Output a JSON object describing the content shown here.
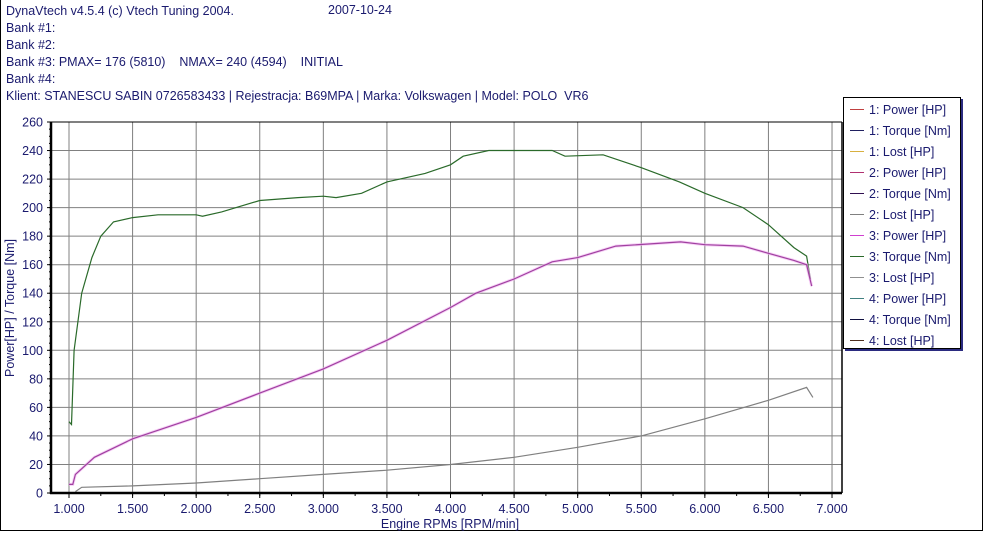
{
  "header": {
    "app_title": "DynaVtech v4.5.4 (c) Vtech Tuning 2004.",
    "date": "2007-10-24",
    "bank1": "Bank #1:",
    "bank2": "Bank #2:",
    "bank3": "Bank #3: PMAX= 176 (5810)    NMAX= 240 (4594)    INITIAL",
    "bank4": "Bank #4:",
    "client": "Klient: STANESCU SABIN 0726583433 | Rejestracja: B69MPA | Marka: Volkswagen | Model: POLO  VR6"
  },
  "legend": {
    "items": [
      {
        "label": "1: Power [HP]",
        "color": "#c04040"
      },
      {
        "label": "1: Torque [Nm]",
        "color": "#202060"
      },
      {
        "label": "1: Lost [HP]",
        "color": "#d8b040"
      },
      {
        "label": "2: Power [HP]",
        "color": "#b03070"
      },
      {
        "label": "2: Torque [Nm]",
        "color": "#301050"
      },
      {
        "label": "2: Lost [HP]",
        "color": "#808080"
      },
      {
        "label": "3: Power [HP]",
        "color": "#d040d0"
      },
      {
        "label": "3: Torque [Nm]",
        "color": "#2a6a2a"
      },
      {
        "label": "3: Lost [HP]",
        "color": "#909090"
      },
      {
        "label": "4: Power [HP]",
        "color": "#408080"
      },
      {
        "label": "4: Torque [Nm]",
        "color": "#101040"
      },
      {
        "label": "4: Lost [HP]",
        "color": "#503020"
      }
    ]
  },
  "chart_data": {
    "type": "line",
    "title": "",
    "xlabel": "Engine RPMs [RPM/min]",
    "ylabel": "Power[HP] / Torque [Nm]",
    "xlim": [
      860,
      7060
    ],
    "ylim": [
      0,
      260
    ],
    "grid": true,
    "legend_position": "right",
    "x_ticks": [
      1000,
      1500,
      2000,
      2500,
      3000,
      3500,
      4000,
      4500,
      5000,
      5500,
      6000,
      6500,
      7000
    ],
    "x_tick_labels": [
      "1.000",
      "1.500",
      "2.000",
      "2.500",
      "3.000",
      "3.500",
      "4.000",
      "4.500",
      "5.000",
      "5.500",
      "6.000",
      "6.500",
      "7.000"
    ],
    "y_ticks": [
      0,
      20,
      40,
      60,
      80,
      100,
      120,
      140,
      160,
      180,
      200,
      220,
      240,
      260
    ],
    "series": [
      {
        "name": "3: Torque [Nm]",
        "color": "#2a6a2a",
        "x": [
          1000,
          1020,
          1040,
          1100,
          1180,
          1250,
          1350,
          1500,
          1700,
          2000,
          2050,
          2200,
          2500,
          2800,
          3000,
          3100,
          3300,
          3500,
          3800,
          4000,
          4100,
          4300,
          4600,
          4800,
          4900,
          5200,
          5500,
          5800,
          6000,
          6300,
          6500,
          6700,
          6800,
          6830
        ],
        "values": [
          50,
          48,
          100,
          140,
          165,
          180,
          190,
          193,
          195,
          195,
          194,
          197,
          205,
          207,
          208,
          207,
          210,
          218,
          224,
          230,
          236,
          240,
          240,
          240,
          236,
          237,
          228,
          218,
          210,
          200,
          188,
          172,
          166,
          150
        ]
      },
      {
        "name": "3: Power [HP]",
        "color": "#a040a0",
        "x": [
          1000,
          1030,
          1050,
          1200,
          1500,
          2000,
          2500,
          3000,
          3500,
          4000,
          4200,
          4500,
          4800,
          5000,
          5300,
          5810,
          6000,
          6300,
          6500,
          6700,
          6800,
          6840
        ],
        "values": [
          6,
          6,
          13,
          25,
          38,
          53,
          70,
          87,
          107,
          130,
          140,
          150,
          162,
          165,
          173,
          176,
          174,
          173,
          168,
          163,
          160,
          145
        ]
      },
      {
        "name": "3: Lost [HP]",
        "color": "#808080",
        "x": [
          1050,
          1100,
          1500,
          2000,
          2500,
          3000,
          3500,
          4000,
          4500,
          5000,
          5500,
          6000,
          6500,
          6800,
          6850
        ],
        "values": [
          1,
          4,
          5,
          7,
          10,
          13,
          16,
          20,
          25,
          32,
          40,
          52,
          65,
          74,
          67
        ]
      }
    ],
    "annotations": [
      "PMAX= 176 (5810)",
      "NMAX= 240 (4594)"
    ]
  }
}
